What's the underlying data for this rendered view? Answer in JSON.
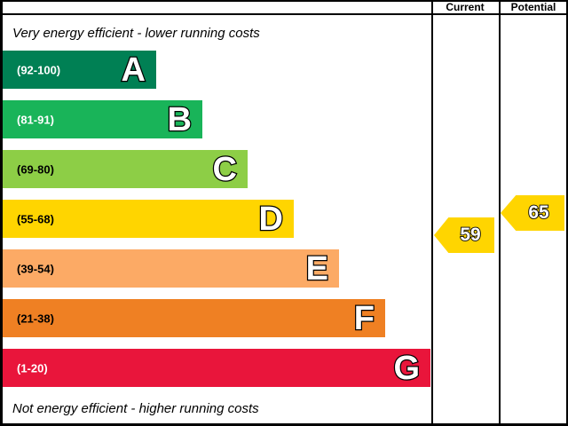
{
  "header": {
    "current_label": "Current",
    "potential_label": "Potential"
  },
  "captions": {
    "top": "Very energy efficient - lower running costs",
    "bottom": "Not energy efficient - higher running costs"
  },
  "bands": [
    {
      "letter": "A",
      "range": "(92-100)",
      "color": "#008054",
      "label_color": "#ffffff"
    },
    {
      "letter": "B",
      "range": "(81-91)",
      "color": "#19b459",
      "label_color": "#ffffff"
    },
    {
      "letter": "C",
      "range": "(69-80)",
      "color": "#8dce46",
      "label_color": "#000000"
    },
    {
      "letter": "D",
      "range": "(55-68)",
      "color": "#ffd500",
      "label_color": "#000000"
    },
    {
      "letter": "E",
      "range": "(39-54)",
      "color": "#fcaa65",
      "label_color": "#000000"
    },
    {
      "letter": "F",
      "range": "(21-38)",
      "color": "#ef8023",
      "label_color": "#000000"
    },
    {
      "letter": "G",
      "range": "(1-20)",
      "color": "#e9153b",
      "label_color": "#ffffff"
    }
  ],
  "current": {
    "value": "59",
    "color": "#ffd500"
  },
  "potential": {
    "value": "65",
    "color": "#ffd500"
  },
  "chart_data": {
    "type": "bar",
    "categories": [
      "A",
      "B",
      "C",
      "D",
      "E",
      "F",
      "G"
    ],
    "band_ranges": [
      "92-100",
      "81-91",
      "69-80",
      "55-68",
      "39-54",
      "21-38",
      "1-20"
    ],
    "band_colors": [
      "#008054",
      "#19b459",
      "#8dce46",
      "#ffd500",
      "#fcaa65",
      "#ef8023",
      "#e9153b"
    ],
    "current_rating": 59,
    "potential_rating": 65,
    "scale": [
      1,
      100
    ],
    "legend_position": "none",
    "annotations": [
      "Very energy efficient - lower running costs",
      "Not energy efficient - higher running costs"
    ]
  }
}
